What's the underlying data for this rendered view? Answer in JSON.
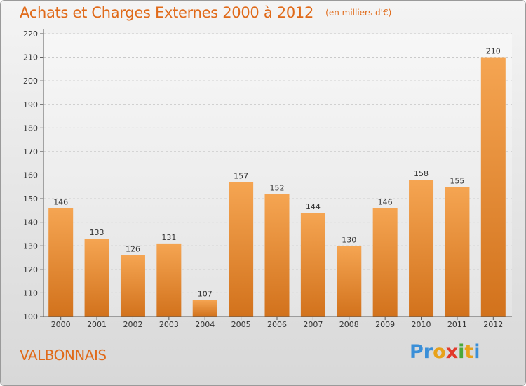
{
  "title": "Achats et Charges Externes 2000 à 2012",
  "subtitle": "(en milliers d'€)",
  "town": "VALBONNAIS",
  "logo": {
    "text": "Proxiti",
    "letters": [
      {
        "char": "P",
        "color": "#3a8fd8"
      },
      {
        "char": "r",
        "color": "#3a8fd8"
      },
      {
        "char": "o",
        "color": "#e8a21a"
      },
      {
        "char": "x",
        "color": "#e23a2c"
      },
      {
        "char": "i",
        "color": "#4aa83a"
      },
      {
        "char": "t",
        "color": "#e8a21a"
      },
      {
        "char": "i",
        "color": "#3a8fd8"
      }
    ]
  },
  "colors": {
    "accent": "#e06a19",
    "bar_top": "#f5a552",
    "bar_bottom": "#d2721c",
    "axis": "#555555",
    "grid": "#c4c4c4"
  },
  "chart_data": {
    "type": "bar",
    "categories": [
      "2000",
      "2001",
      "2002",
      "2003",
      "2004",
      "2005",
      "2006",
      "2007",
      "2008",
      "2009",
      "2010",
      "2011",
      "2012"
    ],
    "values": [
      146,
      133,
      126,
      131,
      107,
      157,
      152,
      144,
      130,
      146,
      158,
      155,
      210
    ],
    "yticks": [
      100,
      110,
      120,
      130,
      140,
      150,
      160,
      170,
      180,
      190,
      200,
      210,
      220
    ],
    "ylim": [
      100,
      220
    ],
    "grid": true
  }
}
